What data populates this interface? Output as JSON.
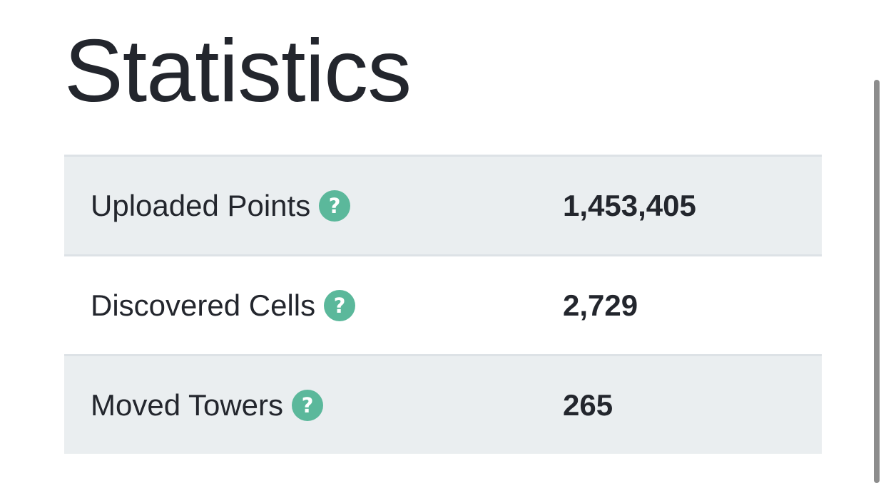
{
  "page": {
    "title": "Statistics"
  },
  "stats": [
    {
      "label": "Uploaded Points",
      "value": "1,453,405",
      "help_icon": "question-circle-icon"
    },
    {
      "label": "Discovered Cells",
      "value": "2,729",
      "help_icon": "question-circle-icon"
    },
    {
      "label": "Moved Towers",
      "value": "265",
      "help_icon": "question-circle-icon"
    }
  ],
  "colors": {
    "text": "#23262d",
    "help_icon": "#5bb89b",
    "row_stripe": "#eaeef0",
    "row_border": "#dde2e6",
    "scrollbar": "#8d8d8d"
  }
}
